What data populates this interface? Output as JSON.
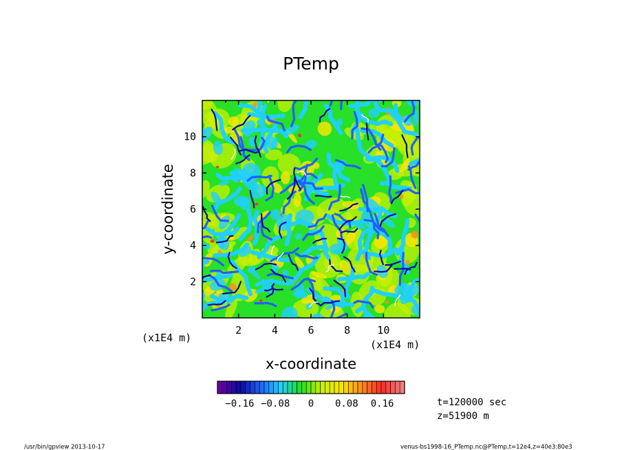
{
  "chart_data": {
    "type": "heatmap",
    "title": "PTemp",
    "xlabel": "x-coordinate",
    "ylabel": "y-coordinate",
    "xlim": [
      0,
      12
    ],
    "ylim": [
      0,
      12
    ],
    "x_ticks": [
      2,
      4,
      6,
      8,
      10
    ],
    "y_ticks": [
      2,
      4,
      6,
      8,
      10
    ],
    "x_tick_labels": [
      "2",
      "4",
      "6",
      "8",
      "10"
    ],
    "y_tick_labels": [
      "2",
      "4",
      "6",
      "8",
      "10"
    ],
    "x_scale_label": "(x1E4 m)",
    "y_scale_label": "(x1E4 m)",
    "colorbar": {
      "range": [
        -0.21,
        0.21
      ],
      "tick_labels": [
        "-0.16",
        "-0.08",
        "0",
        "0.08",
        "0.16"
      ],
      "tick_values": [
        -0.16,
        -0.08,
        0,
        0.08,
        0.16
      ],
      "levels": 40
    },
    "colors": {
      "purple": "#6a00a8",
      "dark_blue": "#0a0aa0",
      "blue": "#2060ff",
      "cyan": "#20d0ff",
      "green": "#20e020",
      "yellow_green": "#c8f000",
      "yellow": "#ffe600",
      "orange": "#ff8c1a",
      "red": "#ff2a2a",
      "pink": "#f08080"
    }
  },
  "info": {
    "time_label": "t=120000 sec",
    "height_label": "z=51900  m"
  },
  "footer": {
    "program": "/usr/bin/gpview   2013-10-17",
    "source": "venus-bs1998-16_PTemp.nc@PTemp,t=12e4,z=40e3:80e3"
  }
}
